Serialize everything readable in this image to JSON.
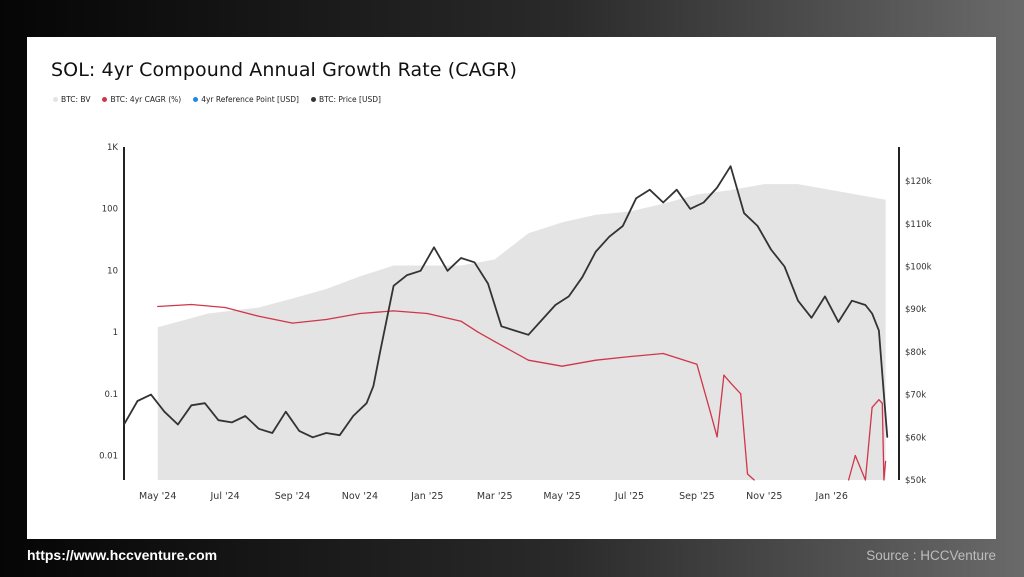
{
  "header": {
    "title": "SOL: 4yr Compound Annual Growth Rate (CAGR)"
  },
  "legend": [
    {
      "label": "BTC: BV",
      "color": "#e4e4e4"
    },
    {
      "label": "BTC: 4yr CAGR (%)",
      "color": "#d0364a"
    },
    {
      "label": "4yr Reference Point [USD]",
      "color": "#1e88e5"
    },
    {
      "label": "BTC: Price [USD]",
      "color": "#333333"
    }
  ],
  "footer": {
    "website": "https://www.hccventure.com",
    "source": "Source : HCCVenture"
  },
  "chart_data": {
    "type": "line",
    "title": "SOL: 4yr Compound Annual Growth Rate (CAGR)",
    "x_tick_labels": [
      "May '24",
      "Jul '24",
      "Sep '24",
      "Nov '24",
      "Jan '25",
      "Mar '25",
      "May '25",
      "Jul '25",
      "Sep '25",
      "Nov '25",
      "Jan '26"
    ],
    "x_tick_month_index": [
      1,
      3,
      5,
      7,
      9,
      11,
      13,
      15,
      17,
      19,
      21
    ],
    "x_range_month_index": [
      0.0,
      22.7
    ],
    "y_left": {
      "scale": "log",
      "range": [
        0.004,
        1000
      ],
      "tick_labels": [
        "1K",
        "100",
        "10",
        "1",
        "0.1",
        "0.01"
      ],
      "tick_values": [
        1000,
        100,
        10,
        1,
        0.1,
        0.01
      ]
    },
    "y_right": {
      "scale": "linear",
      "range": [
        50000,
        128000
      ],
      "tick_labels": [
        "$120k",
        "$110k",
        "$100k",
        "$90k",
        "$80k",
        "$70k",
        "$60k",
        "$50k"
      ],
      "tick_values": [
        120000,
        110000,
        100000,
        90000,
        80000,
        70000,
        60000,
        50000
      ]
    },
    "series": [
      {
        "name": "BTC: BV",
        "axis": "left",
        "style": "area",
        "color": "#e4e4e4",
        "x": [
          1.0,
          2.5,
          4.0,
          5.0,
          6.0,
          7.0,
          8.0,
          9.0,
          10.0,
          11.0,
          12.0,
          13.0,
          14.0,
          15.0,
          16.0,
          17.0,
          18.0,
          19.0,
          20.0,
          21.0,
          22.0,
          22.6
        ],
        "values": [
          1.2,
          2.0,
          2.5,
          3.5,
          5.0,
          8.0,
          12.0,
          12.0,
          12.0,
          15.0,
          40.0,
          60.0,
          80.0,
          90.0,
          120.0,
          170.0,
          200.0,
          250.0,
          250.0,
          200.0,
          160.0,
          140.0
        ]
      },
      {
        "name": "BTC: 4yr CAGR (%)",
        "axis": "left",
        "style": "line",
        "color": "#d0364a",
        "x": [
          1.0,
          2.0,
          3.0,
          4.0,
          5.0,
          6.0,
          7.0,
          8.0,
          9.0,
          10.0,
          10.5,
          11.0,
          12.0,
          13.0,
          14.0,
          15.0,
          16.0,
          17.0,
          17.4,
          17.6,
          17.8,
          18.0,
          18.3,
          18.5,
          18.7
        ],
        "values": [
          2.6,
          2.8,
          2.5,
          1.8,
          1.4,
          1.6,
          2.0,
          2.2,
          2.0,
          1.5,
          1.0,
          0.7,
          0.35,
          0.28,
          0.35,
          0.4,
          0.45,
          0.3,
          0.05,
          0.02,
          0.2,
          0.15,
          0.1,
          0.005,
          0.004
        ]
      },
      {
        "name": "BTC: 4yr CAGR (%) (late segment)",
        "axis": "left",
        "style": "line",
        "color": "#d0364a",
        "x": [
          21.5,
          21.7,
          22.0,
          22.2,
          22.4,
          22.5,
          22.55,
          22.6
        ],
        "values": [
          0.004,
          0.01,
          0.004,
          0.06,
          0.08,
          0.07,
          0.004,
          0.008
        ]
      },
      {
        "name": "BTC: Price [USD]",
        "axis": "right",
        "style": "line",
        "color": "#333333",
        "x": [
          0.0,
          0.4,
          0.8,
          1.2,
          1.6,
          2.0,
          2.4,
          2.8,
          3.2,
          3.6,
          4.0,
          4.4,
          4.8,
          5.2,
          5.6,
          6.0,
          6.4,
          6.8,
          7.2,
          7.4,
          7.6,
          8.0,
          8.4,
          8.8,
          9.2,
          9.6,
          10.0,
          10.4,
          10.8,
          11.2,
          11.6,
          12.0,
          12.4,
          12.8,
          13.2,
          13.6,
          14.0,
          14.4,
          14.8,
          15.2,
          15.6,
          16.0,
          16.4,
          16.8,
          17.2,
          17.6,
          18.0,
          18.4,
          18.8,
          19.2,
          19.6,
          20.0,
          20.4,
          20.8,
          21.2,
          21.6,
          22.0,
          22.2,
          22.4,
          22.55,
          22.65
        ],
        "values": [
          63000,
          68500,
          70000,
          66000,
          63000,
          67500,
          68000,
          64000,
          63500,
          65000,
          62000,
          61000,
          66000,
          61500,
          60000,
          61000,
          60500,
          65000,
          68000,
          72000,
          80000,
          95500,
          98000,
          99000,
          104500,
          99000,
          102000,
          101000,
          96000,
          86000,
          85000,
          84000,
          87500,
          91000,
          93000,
          97500,
          103500,
          107000,
          109500,
          116000,
          118000,
          115000,
          118000,
          113500,
          115000,
          118500,
          123500,
          112500,
          109500,
          104000,
          100000,
          92000,
          88000,
          93000,
          87000,
          92000,
          91000,
          89000,
          85000,
          70000,
          60000
        ]
      }
    ]
  }
}
